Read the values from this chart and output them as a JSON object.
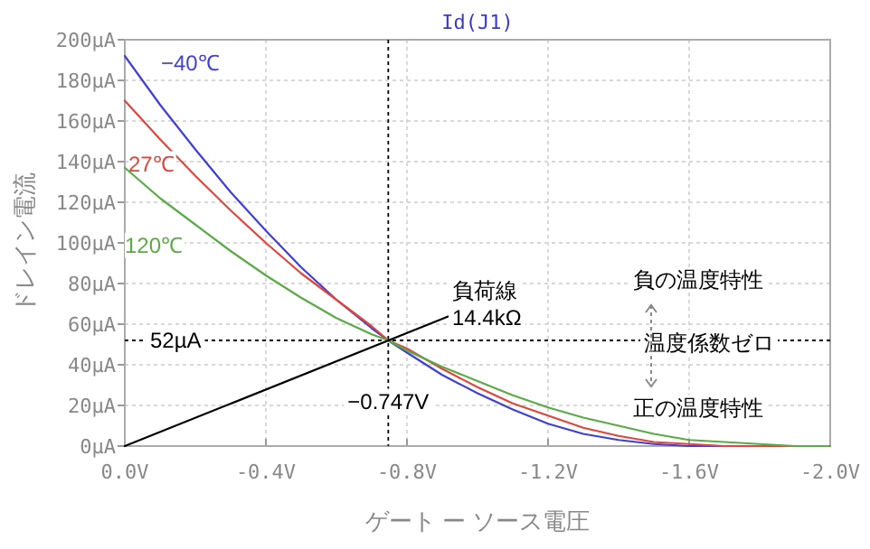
{
  "chart_data": {
    "type": "line",
    "title": "Id(J1)",
    "xlabel": "ゲート ー ソース電圧",
    "ylabel": "ドレイン電流",
    "xlim": [
      0,
      -2.0
    ],
    "ylim": [
      0,
      200
    ],
    "xticks": [
      {
        "value": 0,
        "label": "0.0V"
      },
      {
        "value": -0.4,
        "label": "-0.4V"
      },
      {
        "value": -0.8,
        "label": "-0.8V"
      },
      {
        "value": -1.2,
        "label": "-1.2V"
      },
      {
        "value": -1.6,
        "label": "-1.6V"
      },
      {
        "value": -2.0,
        "label": "-2.0V"
      }
    ],
    "yticks": [
      {
        "value": 0,
        "label": "0µA"
      },
      {
        "value": 20,
        "label": "20µA"
      },
      {
        "value": 40,
        "label": "40µA"
      },
      {
        "value": 60,
        "label": "60µA"
      },
      {
        "value": 80,
        "label": "80µA"
      },
      {
        "value": 100,
        "label": "100µA"
      },
      {
        "value": 120,
        "label": "120µA"
      },
      {
        "value": 140,
        "label": "140µA"
      },
      {
        "value": 160,
        "label": "160µA"
      },
      {
        "value": 180,
        "label": "180µA"
      },
      {
        "value": 200,
        "label": "200µA"
      }
    ],
    "grid": true,
    "series": [
      {
        "name": "−40℃",
        "color": "#3f3fd8",
        "x": [
          0,
          -0.1,
          -0.2,
          -0.3,
          -0.4,
          -0.5,
          -0.6,
          -0.7,
          -0.747,
          -0.8,
          -0.9,
          -1.0,
          -1.1,
          -1.2,
          -1.3,
          -1.4,
          -1.5,
          -1.6,
          -2.0
        ],
        "values": [
          192,
          168,
          146,
          125,
          106,
          88,
          72,
          58,
          52,
          46,
          35,
          26,
          18,
          11,
          6,
          3,
          1,
          0,
          0
        ]
      },
      {
        "name": "27℃",
        "color": "#e0463c",
        "x": [
          0,
          -0.1,
          -0.2,
          -0.3,
          -0.4,
          -0.5,
          -0.6,
          -0.7,
          -0.747,
          -0.8,
          -0.9,
          -1.0,
          -1.1,
          -1.2,
          -1.3,
          -1.4,
          -1.5,
          -1.6,
          -1.7,
          -2.0
        ],
        "values": [
          170,
          151,
          133,
          116,
          100,
          85,
          72,
          59,
          52,
          48,
          38,
          29,
          21,
          15,
          9,
          5,
          2,
          1,
          0,
          0
        ]
      },
      {
        "name": "120℃",
        "color": "#5aaa46",
        "x": [
          0,
          -0.1,
          -0.2,
          -0.3,
          -0.4,
          -0.5,
          -0.6,
          -0.7,
          -0.747,
          -0.8,
          -0.9,
          -1.0,
          -1.1,
          -1.2,
          -1.3,
          -1.4,
          -1.5,
          -1.6,
          -1.7,
          -1.8,
          -1.9,
          -2.0
        ],
        "values": [
          137,
          122,
          109,
          96,
          84,
          73,
          63,
          55,
          52,
          47,
          39,
          32,
          25,
          19,
          14,
          10,
          6,
          3,
          2,
          1,
          0,
          0
        ]
      },
      {
        "color": "#000000",
        "x": [
          0,
          -0.92
        ],
        "values": [
          0,
          64
        ]
      }
    ],
    "ref_lines": [
      {
        "axis": "y",
        "value": 52,
        "label": "52µA",
        "color": "#000000",
        "line_style": "dotted"
      },
      {
        "axis": "x",
        "value": -0.747,
        "label": "−0.747V",
        "color": "#000000",
        "line_style": "dotted"
      }
    ],
    "annotations": [
      "負荷線",
      "14.4kΩ",
      "負の温度特性",
      "温度係数ゼロ",
      "正の温度特性"
    ]
  }
}
